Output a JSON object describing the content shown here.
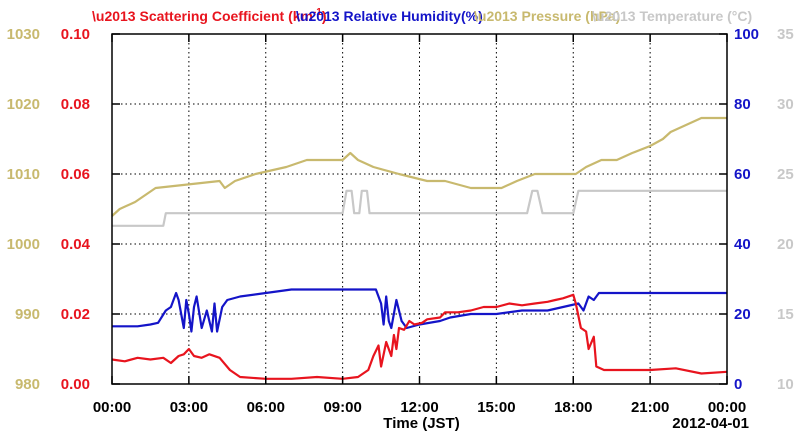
{
  "chart_data": {
    "type": "line",
    "xlabel": "Time (JST)",
    "date_label": "2012-04-01",
    "x_ticks": [
      "00:00",
      "03:00",
      "06:00",
      "09:00",
      "12:00",
      "15:00",
      "18:00",
      "21:00",
      "00:00"
    ],
    "xlim_hours": [
      0,
      24
    ],
    "grid": true,
    "legend_placement": "top",
    "legend": {
      "scattering_label": "Scattering Coefficient (km",
      "scattering_sup": "-1",
      "scattering_close": ")",
      "humidity_label": "Relative Humidity(%)",
      "pressure_label": "Pressure (hPa)",
      "temperature_label": "Temperature (°C)"
    },
    "axes": {
      "pressure": {
        "ticks": [
          "980",
          "990",
          "1000",
          "1010",
          "1020",
          "1030"
        ],
        "range": [
          980,
          1030
        ],
        "color": "#c8b96e"
      },
      "scattering": {
        "ticks": [
          "0.00",
          "0.02",
          "0.04",
          "0.06",
          "0.08",
          "0.10"
        ],
        "range": [
          0,
          0.1
        ],
        "color": "#e8141e"
      },
      "humidity": {
        "ticks": [
          "0",
          "20",
          "40",
          "60",
          "80",
          "100"
        ],
        "range": [
          0,
          100
        ],
        "color": "#1414c8"
      },
      "temperature": {
        "ticks": [
          "10",
          "15",
          "20",
          "25",
          "30",
          "35"
        ],
        "range": [
          10,
          35
        ],
        "color": "#c8c8c8"
      }
    },
    "series": [
      {
        "name": "Pressure (hPa)",
        "axis": "pressure",
        "color": "#c8b96e",
        "x": [
          0,
          0.3,
          0.9,
          1.7,
          4.2,
          4.4,
          4.8,
          5.6,
          6.8,
          7.6,
          9.0,
          9.3,
          9.6,
          10.2,
          11.2,
          12.3,
          13.0,
          14.0,
          15.2,
          15.8,
          16.5,
          17.3,
          18.1,
          18.5,
          19.1,
          19.7,
          20.3,
          21.0,
          21.5,
          21.8,
          23.0,
          24
        ],
        "y": [
          1004,
          1005,
          1006,
          1008,
          1009,
          1008,
          1009,
          1010,
          1011,
          1012,
          1012,
          1013,
          1012,
          1011,
          1010,
          1009,
          1009,
          1008,
          1008,
          1009,
          1010,
          1010,
          1010,
          1011,
          1012,
          1012,
          1013,
          1014,
          1015,
          1016,
          1018,
          1018
        ]
      },
      {
        "name": "Temperature (°C)",
        "axis": "temperature",
        "color": "#c8c8c8",
        "x": [
          0,
          2.0,
          2.1,
          5.3,
          5.5,
          9.0,
          9.15,
          9.35,
          9.45,
          9.65,
          9.75,
          9.95,
          10.05,
          10.25,
          10.35,
          16.2,
          16.4,
          16.6,
          16.8,
          18.0,
          18.2,
          24
        ],
        "y": [
          21.3,
          21.3,
          22.2,
          22.2,
          22.2,
          22.2,
          23.8,
          23.8,
          22.2,
          22.2,
          23.8,
          23.8,
          22.2,
          22.2,
          22.2,
          22.2,
          23.8,
          23.8,
          22.2,
          22.2,
          23.8,
          23.8
        ]
      },
      {
        "name": "Relative Humidity(%)",
        "axis": "humidity",
        "color": "#1414c8",
        "x": [
          0,
          1.0,
          1.5,
          1.8,
          2.1,
          2.3,
          2.5,
          2.6,
          2.8,
          2.9,
          3.0,
          3.1,
          3.2,
          3.3,
          3.5,
          3.7,
          3.9,
          4.0,
          4.1,
          4.3,
          4.5,
          5.0,
          6.0,
          7.0,
          9.0,
          10.3,
          10.5,
          10.6,
          10.7,
          10.8,
          10.9,
          11.1,
          11.3,
          11.5,
          12.0,
          12.8,
          13.2,
          14.0,
          15.0,
          16.0,
          17.0,
          18.2,
          18.4,
          18.6,
          18.8,
          19.0,
          24
        ],
        "y": [
          16.5,
          16.5,
          17,
          17.5,
          21,
          22,
          26,
          24,
          16,
          24,
          20,
          15,
          22,
          25,
          16,
          21,
          15,
          23,
          15,
          22,
          24,
          25,
          26,
          27,
          27,
          27,
          23,
          17,
          25,
          18,
          16,
          24,
          18,
          16,
          17,
          18,
          19,
          20,
          20,
          21,
          21,
          23,
          21,
          25,
          24,
          26,
          26
        ]
      },
      {
        "name": "Scattering Coefficient (km-1)",
        "axis": "scattering",
        "color": "#e8141e",
        "x": [
          0,
          0.5,
          1.0,
          1.5,
          2.0,
          2.3,
          2.6,
          2.8,
          3.0,
          3.2,
          3.5,
          3.8,
          4.2,
          4.6,
          5.0,
          6.0,
          7.0,
          8.0,
          9.0,
          9.6,
          10.0,
          10.2,
          10.4,
          10.5,
          10.7,
          10.9,
          11.0,
          11.1,
          11.2,
          11.4,
          11.6,
          11.8,
          12.1,
          12.3,
          12.8,
          13.0,
          13.5,
          14.0,
          14.5,
          15.0,
          15.5,
          16.0,
          16.5,
          17.0,
          17.3,
          17.6,
          18.0,
          18.1,
          18.3,
          18.5,
          18.6,
          18.8,
          18.9,
          19.2,
          20.0,
          21.0,
          22.0,
          23.0,
          24
        ],
        "y": [
          0.007,
          0.0065,
          0.0075,
          0.007,
          0.0075,
          0.006,
          0.008,
          0.0085,
          0.01,
          0.008,
          0.0075,
          0.0085,
          0.0075,
          0.004,
          0.002,
          0.0015,
          0.0015,
          0.002,
          0.0015,
          0.002,
          0.004,
          0.008,
          0.011,
          0.005,
          0.012,
          0.008,
          0.014,
          0.01,
          0.016,
          0.0155,
          0.018,
          0.017,
          0.0175,
          0.0185,
          0.019,
          0.0205,
          0.0205,
          0.021,
          0.022,
          0.022,
          0.023,
          0.0225,
          0.023,
          0.0235,
          0.024,
          0.0245,
          0.0255,
          0.023,
          0.016,
          0.015,
          0.01,
          0.0135,
          0.005,
          0.004,
          0.004,
          0.004,
          0.0045,
          0.003,
          0.0035
        ]
      }
    ]
  }
}
